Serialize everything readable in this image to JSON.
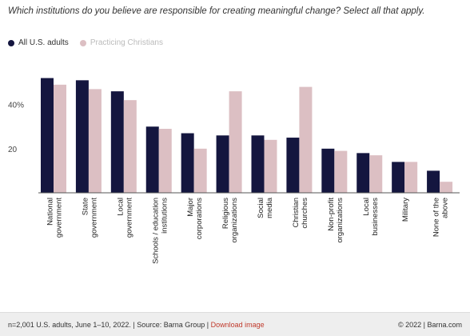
{
  "question": "Which institutions do you believe are responsible for creating meaningful change? Select all that apply.",
  "legend": [
    {
      "label": "All U.S. adults",
      "color": "#14163f"
    },
    {
      "label": "Practicing Christians",
      "color": "#dcbfc3"
    }
  ],
  "chart_data": {
    "type": "bar",
    "categories": [
      [
        "National",
        "government"
      ],
      [
        "State",
        "government"
      ],
      [
        "Local",
        "government"
      ],
      [
        "Schools / education",
        "institutions"
      ],
      [
        "Major",
        "corporations"
      ],
      [
        "Religious",
        "organizations"
      ],
      [
        "Social",
        "media"
      ],
      [
        "Christian",
        "churches"
      ],
      [
        "Non-profit",
        "organizations"
      ],
      [
        "Local",
        "businesses"
      ],
      [
        "Military"
      ],
      [
        "None of the",
        "above"
      ]
    ],
    "series": [
      {
        "name": "All U.S. adults",
        "color": "#14163f",
        "values": [
          52,
          51,
          46,
          30,
          27,
          26,
          26,
          25,
          20,
          18,
          14,
          10
        ]
      },
      {
        "name": "Practicing Christians",
        "color": "#dcbfc3",
        "values": [
          49,
          47,
          42,
          29,
          20,
          46,
          24,
          48,
          19,
          17,
          14,
          5
        ]
      }
    ],
    "yticks": [
      {
        "value": 20,
        "label": "20"
      },
      {
        "value": 40,
        "label": "40%"
      }
    ],
    "ylim": [
      0,
      60
    ],
    "grid": false,
    "legend_position": "top-left"
  },
  "footer": {
    "source": "n=2,001 U.S. adults, June 1–10, 2022. | Source: Barna Group |",
    "download": "Download image",
    "copyright": "© 2022 |",
    "site": "Barna.com"
  }
}
